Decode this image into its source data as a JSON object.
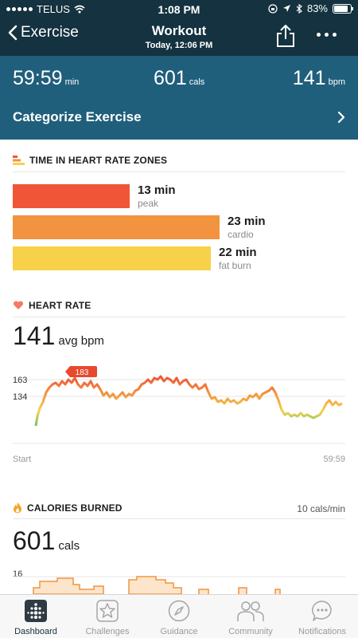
{
  "status_bar": {
    "carrier": "TELUS",
    "time": "1:08 PM",
    "battery": "83%",
    "battery_level": 0.83
  },
  "nav": {
    "back_label": "Exercise",
    "title": "Workout",
    "subtitle": "Today, 12:06 PM"
  },
  "stats": {
    "duration": "59:59",
    "duration_unit": "min",
    "calories": "601",
    "calories_unit": "cals",
    "heart_rate": "141",
    "heart_rate_unit": "bpm"
  },
  "categorize_label": "Categorize Exercise",
  "zones": {
    "title": "TIME IN HEART RATE ZONES",
    "items": [
      {
        "value": "13 min",
        "label": "peak",
        "minutes": 13,
        "color": "#f05537"
      },
      {
        "value": "23 min",
        "label": "cardio",
        "minutes": 23,
        "color": "#f2933f"
      },
      {
        "value": "22 min",
        "label": "fat burn",
        "minutes": 22,
        "color": "#f8d14b"
      }
    ]
  },
  "heart_rate": {
    "title": "HEART RATE",
    "avg_value": "141",
    "avg_unit": "avg bpm",
    "peak_label": "183",
    "ticks": [
      "163",
      "134"
    ],
    "x_start": "Start",
    "x_end": "59:59"
  },
  "calories": {
    "title": "CALORIES BURNED",
    "rate": "10 cals/min",
    "total": "601",
    "unit": "cals",
    "tick": "16"
  },
  "tabs": [
    {
      "label": "Dashboard",
      "icon": "dashboard-icon"
    },
    {
      "label": "Challenges",
      "icon": "star-icon"
    },
    {
      "label": "Guidance",
      "icon": "compass-icon"
    },
    {
      "label": "Community",
      "icon": "people-icon"
    },
    {
      "label": "Notifications",
      "icon": "chat-bubble-icon"
    }
  ],
  "colors": {
    "header": "#14323f",
    "stats_band": "#205f7b",
    "peak": "#f05537",
    "cardio": "#f2933f",
    "fat_burn": "#f8d14b"
  }
}
